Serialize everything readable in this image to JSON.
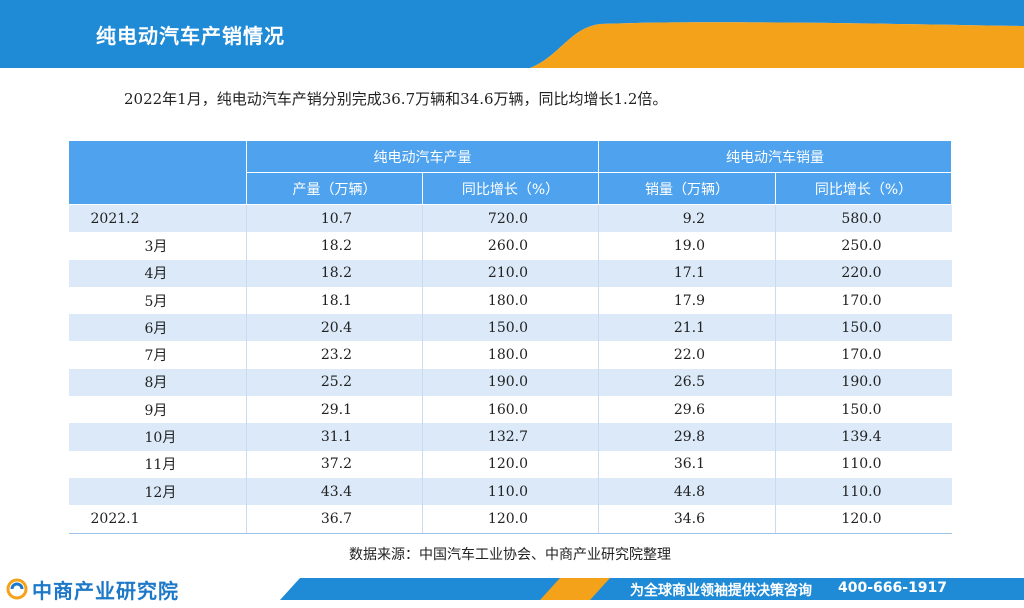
{
  "header": {
    "title": "纯电动汽车产销情况"
  },
  "summary": "2022年1月，纯电动汽车产销分别完成36.7万辆和34.6万辆，同比均增长1.2倍。",
  "table": {
    "group_headers": [
      "纯电动汽车产量",
      "纯电动汽车销量"
    ],
    "sub_headers": [
      "产量（万辆）",
      "同比增长（%）",
      "销量（万辆）",
      "同比增长（%）"
    ],
    "rows": [
      [
        "2021.2",
        "10.7",
        "720.0",
        "9.2",
        "580.0"
      ],
      [
        "3月",
        "18.2",
        "260.0",
        "19.0",
        "250.0"
      ],
      [
        "4月",
        "18.2",
        "210.0",
        "17.1",
        "220.0"
      ],
      [
        "5月",
        "18.1",
        "180.0",
        "17.9",
        "170.0"
      ],
      [
        "6月",
        "20.4",
        "150.0",
        "21.1",
        "150.0"
      ],
      [
        "7月",
        "23.2",
        "180.0",
        "22.0",
        "170.0"
      ],
      [
        "8月",
        "25.2",
        "190.0",
        "26.5",
        "190.0"
      ],
      [
        "9月",
        "29.1",
        "160.0",
        "29.6",
        "150.0"
      ],
      [
        "10月",
        "31.1",
        "132.7",
        "29.8",
        "139.4"
      ],
      [
        "11月",
        "37.2",
        "120.0",
        "36.1",
        "110.0"
      ],
      [
        "12月",
        "43.4",
        "110.0",
        "44.8",
        "110.0"
      ],
      [
        "2022.1",
        "36.7",
        "120.0",
        "34.6",
        "120.0"
      ]
    ]
  },
  "source_note": "数据来源：中国汽车工业协会、中商产业研究院整理",
  "footer": {
    "logo_text": "中商产业研究院",
    "slogan": "为全球商业领袖提供决策咨询",
    "phone": "400-666-1917"
  },
  "colors": {
    "header_blue": "#1f8ad6",
    "accent_orange": "#f5a21b",
    "table_header": "#4fa3ee",
    "row_stripe": "#dbe9f8"
  }
}
